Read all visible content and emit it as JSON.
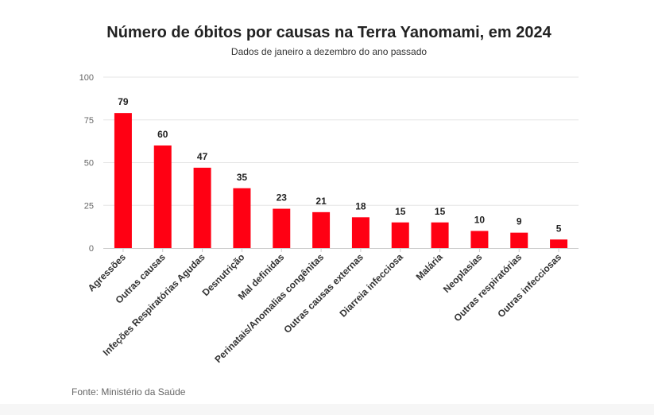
{
  "chart_data": {
    "type": "bar",
    "title": "Número de óbitos por causas na Terra Yanomami, em 2024",
    "subtitle": "Dados de janeiro a dezembro do ano passado",
    "source": "Fonte: Ministério da Saúde",
    "xlabel": "",
    "ylabel": "",
    "ylim": [
      0,
      100
    ],
    "yticks": [
      0,
      25,
      50,
      75,
      100
    ],
    "grid": true,
    "bar_color": "#ff0013",
    "categories": [
      "Agressões",
      "Outras causas",
      "Infeções Respiratórias Agudas",
      "Desnutrição",
      "Mal definidas",
      "Perinatais/Anomalias congênitas",
      "Outras causas externas",
      "Diarreia infecciosa",
      "Malária",
      "Neoplasias",
      "Outras respiratórias",
      "Outras infecciosas"
    ],
    "values": [
      79,
      60,
      47,
      35,
      23,
      21,
      18,
      15,
      15,
      10,
      9,
      5
    ]
  }
}
